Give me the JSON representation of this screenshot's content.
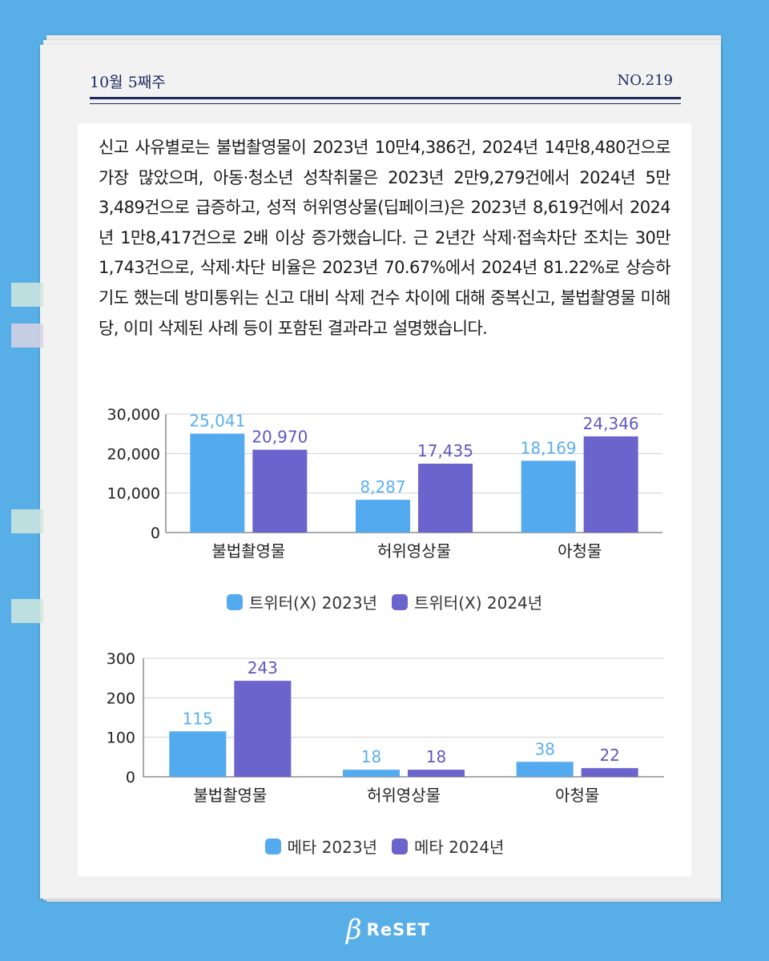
{
  "header": {
    "issue_date": "10월 5째주",
    "issue_no": "NO.219"
  },
  "body_text": "신고 사유별로는 불법촬영물이 2023년 10만4,386건, 2024년 14만8,480건으로 가장 많았으며, 아동·청소년 성착취물은 2023년 2만9,279건에서 2024년 5만3,489건으로 급증하고, 성적 허위영상물(딥페이크)은 2023년 8,619건에서 2024년 1만8,417건으로 2배 이상 증가했습니다. 근 2년간 삭제·접속차단 조치는 30만1,743건으로, 삭제·차단 비율은 2023년 70.67%에서 2024년 81.22%로 상승하기도 했는데 방미통위는 신고 대비 삭제 건수 차이에 대해 중복신고, 불법촬영물 미해당, 이미 삭제된 사례 등이 포함된 결과라고 설명했습니다.",
  "colors": {
    "series_2023": "#54aaee",
    "series_2024": "#6a64cc",
    "label_2023": "#5ab0f0",
    "label_2024": "#5f58c4"
  },
  "chart_data": [
    {
      "type": "bar",
      "categories": [
        "불법촬영물",
        "허위영상물",
        "아청물"
      ],
      "ylim": [
        0,
        30000
      ],
      "yticks": [
        0,
        10000,
        20000,
        30000
      ],
      "ytick_labels": [
        "0",
        "10,000",
        "20,000",
        "30,000"
      ],
      "grid": true,
      "legend_position": "bottom",
      "series": [
        {
          "name": "트위터(X) 2023년",
          "values": [
            25041,
            8287,
            18169
          ],
          "labels": [
            "25,041",
            "8,287",
            "18,169"
          ]
        },
        {
          "name": "트위터(X) 2024년",
          "values": [
            20970,
            17435,
            24346
          ],
          "labels": [
            "20,970",
            "17,435",
            "24,346"
          ]
        }
      ]
    },
    {
      "type": "bar",
      "categories": [
        "불법촬영물",
        "허위영상물",
        "아청물"
      ],
      "ylim": [
        0,
        300
      ],
      "yticks": [
        0,
        100,
        200,
        300
      ],
      "ytick_labels": [
        "0",
        "100",
        "200",
        "300"
      ],
      "grid": true,
      "legend_position": "bottom",
      "series": [
        {
          "name": "메타 2023년",
          "values": [
            115,
            18,
            38
          ],
          "labels": [
            "115",
            "18",
            "38"
          ]
        },
        {
          "name": "메타 2024년",
          "values": [
            243,
            18,
            22
          ],
          "labels": [
            "243",
            "18",
            "22"
          ]
        }
      ]
    }
  ],
  "footer": {
    "logo_mark": "β",
    "logo_text": "ReSET"
  }
}
